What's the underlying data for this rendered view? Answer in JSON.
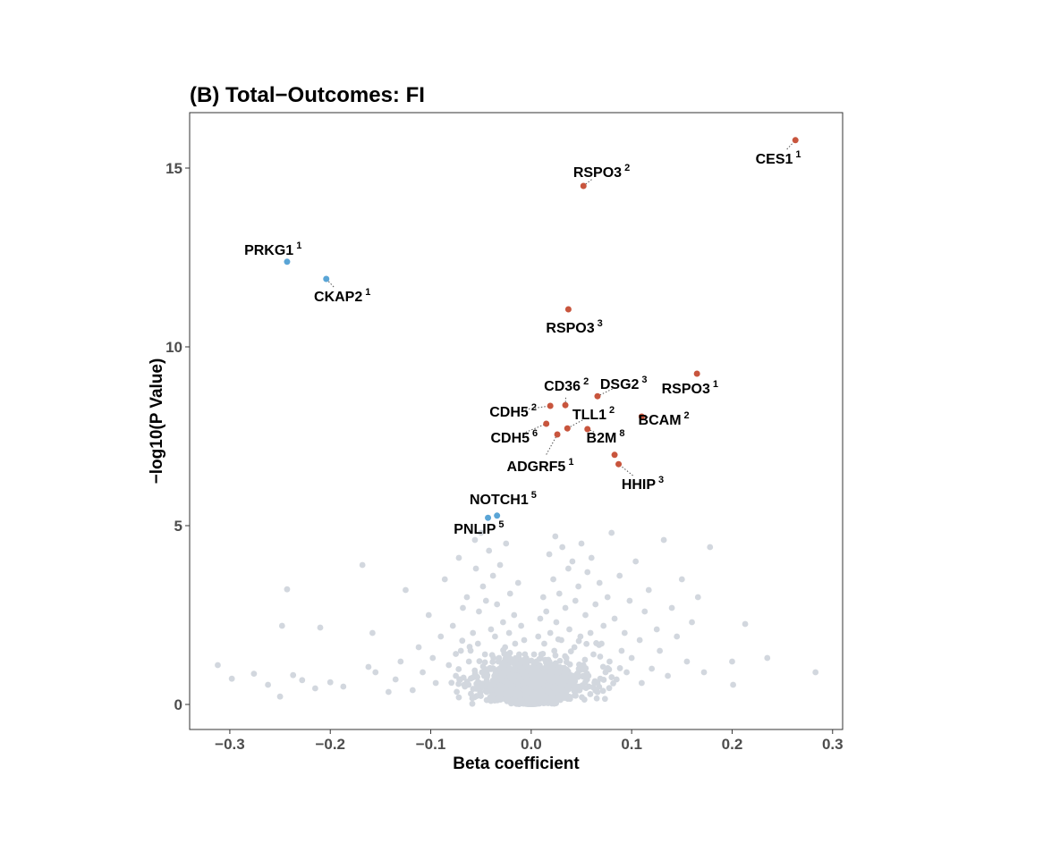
{
  "chart_data": {
    "type": "scatter",
    "title": "(B) Total−Outcomes: FI",
    "xlabel": "Beta coefficient",
    "ylabel": "−log10(P Value)",
    "xlim": [
      -0.34,
      0.31
    ],
    "ylim": [
      -0.7,
      16.55
    ],
    "xticks": [
      -0.3,
      -0.2,
      -0.1,
      0.0,
      0.1,
      0.2,
      0.3
    ],
    "xtick_labels": [
      "−0.3",
      "−0.2",
      "−0.1",
      "0.0",
      "0.1",
      "0.2",
      "0.3"
    ],
    "yticks": [
      0,
      5,
      10,
      15
    ],
    "ytick_labels": [
      "0",
      "5",
      "10",
      "15"
    ],
    "grid": false,
    "colors": {
      "positive": "#c8553d",
      "negative": "#5aa5d6",
      "background_points": "#d2d7de",
      "axis_text": "#4d4d4d"
    },
    "highlighted": [
      {
        "gene": "CES1",
        "sup": "1",
        "x": 0.263,
        "y": 15.78,
        "direction": "positive"
      },
      {
        "gene": "RSPO3",
        "sup": "2",
        "x": 0.052,
        "y": 14.5,
        "direction": "positive"
      },
      {
        "gene": "PRKG1",
        "sup": "1",
        "x": -0.243,
        "y": 12.38,
        "direction": "negative"
      },
      {
        "gene": "CKAP2",
        "sup": "1",
        "x": -0.204,
        "y": 11.9,
        "direction": "negative"
      },
      {
        "gene": "RSPO3",
        "sup": "3",
        "x": 0.037,
        "y": 11.05,
        "direction": "positive"
      },
      {
        "gene": "RSPO3",
        "sup": "1",
        "x": 0.165,
        "y": 9.25,
        "direction": "positive"
      },
      {
        "gene": "DSG2",
        "sup": "3",
        "x": 0.066,
        "y": 8.62,
        "direction": "positive"
      },
      {
        "gene": "CD36",
        "sup": "2",
        "x": 0.034,
        "y": 8.37,
        "direction": "positive"
      },
      {
        "gene": "CDH5",
        "sup": "2",
        "x": 0.019,
        "y": 8.35,
        "direction": "positive"
      },
      {
        "gene": "BCAM",
        "sup": "2",
        "x": 0.11,
        "y": 8.05,
        "direction": "positive"
      },
      {
        "gene": "TLL1",
        "sup": "2",
        "x": 0.036,
        "y": 7.72,
        "direction": "positive"
      },
      {
        "gene": "CDH5",
        "sup": "6",
        "x": 0.015,
        "y": 7.85,
        "direction": "positive"
      },
      {
        "gene": "B2M",
        "sup": "8",
        "x": 0.056,
        "y": 7.7,
        "direction": "positive"
      },
      {
        "gene": "ADGRF5",
        "sup": "1",
        "x": 0.026,
        "y": 7.55,
        "direction": "positive"
      },
      {
        "gene": "HHIP",
        "sup": "3",
        "x": 0.083,
        "y": 6.98,
        "direction": "positive"
      },
      {
        "gene": "HHIP",
        "sup": "",
        "x": 0.087,
        "y": 6.72,
        "direction": "positive"
      },
      {
        "gene": "NOTCH1",
        "sup": "5",
        "x": -0.034,
        "y": 5.28,
        "direction": "negative"
      },
      {
        "gene": "PNLIP",
        "sup": "5",
        "x": -0.043,
        "y": 5.22,
        "direction": "negative"
      }
    ],
    "labels": [
      {
        "gene": "CES1",
        "sup": "1",
        "lx": 0.246,
        "ly": 15.27,
        "point": 0
      },
      {
        "gene": "RSPO3",
        "sup": "2",
        "lx": 0.07,
        "ly": 14.9,
        "point": 1
      },
      {
        "gene": "PRKG1",
        "sup": "1",
        "lx": -0.257,
        "ly": 12.72,
        "point": 2
      },
      {
        "gene": "CKAP2",
        "sup": "1",
        "lx": -0.188,
        "ly": 11.42,
        "point": 3
      },
      {
        "gene": "RSPO3",
        "sup": "3",
        "lx": 0.043,
        "ly": 10.55,
        "point": 4
      },
      {
        "gene": "RSPO3",
        "sup": "1",
        "lx": 0.158,
        "ly": 8.85,
        "point": 5
      },
      {
        "gene": "DSG2",
        "sup": "3",
        "lx": 0.092,
        "ly": 8.98,
        "point": 6
      },
      {
        "gene": "CD36",
        "sup": "2",
        "lx": 0.035,
        "ly": 8.93,
        "point": 7
      },
      {
        "gene": "CDH5",
        "sup": "2",
        "lx": -0.018,
        "ly": 8.2,
        "point": 8
      },
      {
        "gene": "TLL1",
        "sup": "2",
        "lx": 0.062,
        "ly": 8.12,
        "point": 10
      },
      {
        "gene": "BCAM",
        "sup": "2",
        "lx": 0.132,
        "ly": 7.98,
        "point": 9
      },
      {
        "gene": "CDH5",
        "sup": "6",
        "lx": -0.017,
        "ly": 7.48,
        "point": 11
      },
      {
        "gene": "B2M",
        "sup": "8",
        "lx": 0.074,
        "ly": 7.48,
        "point": 12
      },
      {
        "gene": "ADGRF5",
        "sup": "1",
        "lx": 0.009,
        "ly": 6.68,
        "point": 13
      },
      {
        "gene": "HHIP",
        "sup": "3",
        "lx": 0.111,
        "ly": 6.18,
        "point": 15
      },
      {
        "gene": "NOTCH1",
        "sup": "5",
        "lx": -0.028,
        "ly": 5.75,
        "point": 16
      },
      {
        "gene": "PNLIP",
        "sup": "5",
        "lx": -0.052,
        "ly": 4.92,
        "point": 17
      }
    ],
    "background_points": [
      [
        -0.312,
        1.1
      ],
      [
        -0.298,
        0.72
      ],
      [
        -0.276,
        0.86
      ],
      [
        -0.262,
        0.55
      ],
      [
        -0.25,
        0.22
      ],
      [
        -0.248,
        2.2
      ],
      [
        -0.243,
        3.22
      ],
      [
        -0.237,
        0.82
      ],
      [
        -0.228,
        0.68
      ],
      [
        -0.215,
        0.45
      ],
      [
        -0.21,
        2.15
      ],
      [
        -0.2,
        0.62
      ],
      [
        -0.187,
        0.5
      ],
      [
        -0.168,
        3.9
      ],
      [
        -0.162,
        1.05
      ],
      [
        -0.158,
        2.0
      ],
      [
        -0.155,
        0.9
      ],
      [
        -0.142,
        0.35
      ],
      [
        -0.135,
        0.7
      ],
      [
        -0.13,
        1.2
      ],
      [
        -0.125,
        3.2
      ],
      [
        -0.118,
        0.4
      ],
      [
        -0.112,
        1.6
      ],
      [
        -0.108,
        0.9
      ],
      [
        -0.102,
        2.5
      ],
      [
        -0.098,
        1.3
      ],
      [
        -0.095,
        0.6
      ],
      [
        -0.09,
        1.9
      ],
      [
        -0.086,
        3.5
      ],
      [
        -0.082,
        1.1
      ],
      [
        -0.078,
        2.2
      ],
      [
        -0.075,
        0.8
      ],
      [
        -0.072,
        4.1
      ],
      [
        -0.07,
        1.5
      ],
      [
        -0.068,
        2.7
      ],
      [
        -0.066,
        0.5
      ],
      [
        -0.064,
        3.0
      ],
      [
        -0.062,
        1.2
      ],
      [
        -0.06,
        0.3
      ],
      [
        -0.058,
        2.0
      ],
      [
        -0.056,
        4.6
      ],
      [
        -0.055,
        3.8
      ],
      [
        -0.053,
        1.7
      ],
      [
        -0.052,
        2.6
      ],
      [
        -0.05,
        4.8
      ],
      [
        -0.049,
        0.9
      ],
      [
        -0.048,
        3.3
      ],
      [
        -0.046,
        1.4
      ],
      [
        -0.045,
        2.9
      ],
      [
        -0.044,
        0.6
      ],
      [
        -0.042,
        4.3
      ],
      [
        -0.04,
        2.1
      ],
      [
        -0.039,
        1.0
      ],
      [
        -0.038,
        3.6
      ],
      [
        -0.036,
        1.9
      ],
      [
        -0.035,
        0.4
      ],
      [
        -0.034,
        2.8
      ],
      [
        -0.032,
        1.3
      ],
      [
        -0.031,
        3.9
      ],
      [
        -0.03,
        0.7
      ],
      [
        -0.028,
        2.3
      ],
      [
        -0.026,
        1.6
      ],
      [
        -0.025,
        4.5
      ],
      [
        -0.024,
        0.9
      ],
      [
        -0.022,
        2.0
      ],
      [
        -0.021,
        3.1
      ],
      [
        -0.02,
        1.2
      ],
      [
        -0.018,
        0.5
      ],
      [
        -0.017,
        2.5
      ],
      [
        -0.016,
        1.7
      ],
      [
        -0.014,
        0.8
      ],
      [
        -0.013,
        3.4
      ],
      [
        -0.012,
        1.4
      ],
      [
        -0.011,
        0.3
      ],
      [
        -0.01,
        2.2
      ],
      [
        -0.009,
        1.0
      ],
      [
        -0.008,
        0.6
      ],
      [
        -0.007,
        1.8
      ],
      [
        -0.006,
        0.4
      ],
      [
        -0.005,
        1.1
      ],
      [
        -0.004,
        0.2
      ],
      [
        -0.003,
        0.7
      ],
      [
        -0.002,
        0.1
      ],
      [
        -0.001,
        0.35
      ],
      [
        0.001,
        0.3
      ],
      [
        0.002,
        0.15
      ],
      [
        0.003,
        0.8
      ],
      [
        0.004,
        0.25
      ],
      [
        0.005,
        1.2
      ],
      [
        0.006,
        0.5
      ],
      [
        0.007,
        1.9
      ],
      [
        0.008,
        0.9
      ],
      [
        0.009,
        2.4
      ],
      [
        0.01,
        1.4
      ],
      [
        0.011,
        0.6
      ],
      [
        0.012,
        3.0
      ],
      [
        0.013,
        1.7
      ],
      [
        0.014,
        0.4
      ],
      [
        0.015,
        2.6
      ],
      [
        0.016,
        1.1
      ],
      [
        0.018,
        4.2
      ],
      [
        0.019,
        2.0
      ],
      [
        0.02,
        0.8
      ],
      [
        0.022,
        3.5
      ],
      [
        0.023,
        1.5
      ],
      [
        0.024,
        4.7
      ],
      [
        0.025,
        2.3
      ],
      [
        0.027,
        0.9
      ],
      [
        0.028,
        3.1
      ],
      [
        0.03,
        1.8
      ],
      [
        0.031,
        4.4
      ],
      [
        0.032,
        0.6
      ],
      [
        0.034,
        2.7
      ],
      [
        0.035,
        1.3
      ],
      [
        0.037,
        3.8
      ],
      [
        0.038,
        2.1
      ],
      [
        0.04,
        0.7
      ],
      [
        0.041,
        4.0
      ],
      [
        0.043,
        1.6
      ],
      [
        0.044,
        2.9
      ],
      [
        0.046,
        0.5
      ],
      [
        0.047,
        3.3
      ],
      [
        0.049,
        1.9
      ],
      [
        0.05,
        4.5
      ],
      [
        0.052,
        1.1
      ],
      [
        0.054,
        2.5
      ],
      [
        0.056,
        3.7
      ],
      [
        0.057,
        0.8
      ],
      [
        0.059,
        2.0
      ],
      [
        0.06,
        4.1
      ],
      [
        0.062,
        1.4
      ],
      [
        0.064,
        2.8
      ],
      [
        0.066,
        0.6
      ],
      [
        0.068,
        3.4
      ],
      [
        0.07,
        1.7
      ],
      [
        0.072,
        2.2
      ],
      [
        0.074,
        0.9
      ],
      [
        0.076,
        3.0
      ],
      [
        0.078,
        1.2
      ],
      [
        0.08,
        4.8
      ],
      [
        0.083,
        2.4
      ],
      [
        0.085,
        0.7
      ],
      [
        0.088,
        3.6
      ],
      [
        0.09,
        1.5
      ],
      [
        0.093,
        2.0
      ],
      [
        0.095,
        0.9
      ],
      [
        0.098,
        2.9
      ],
      [
        0.1,
        1.3
      ],
      [
        0.104,
        4.0
      ],
      [
        0.108,
        1.8
      ],
      [
        0.11,
        0.6
      ],
      [
        0.113,
        2.6
      ],
      [
        0.117,
        3.2
      ],
      [
        0.12,
        1.0
      ],
      [
        0.125,
        2.1
      ],
      [
        0.128,
        1.5
      ],
      [
        0.132,
        4.6
      ],
      [
        0.136,
        0.8
      ],
      [
        0.14,
        2.7
      ],
      [
        0.145,
        1.9
      ],
      [
        0.15,
        3.5
      ],
      [
        0.155,
        1.2
      ],
      [
        0.16,
        2.3
      ],
      [
        0.166,
        3.0
      ],
      [
        0.172,
        0.9
      ],
      [
        0.178,
        4.4
      ],
      [
        0.2,
        1.2
      ],
      [
        0.201,
        0.55
      ],
      [
        0.213,
        2.25
      ],
      [
        0.235,
        1.3
      ],
      [
        0.283,
        0.9
      ]
    ]
  }
}
